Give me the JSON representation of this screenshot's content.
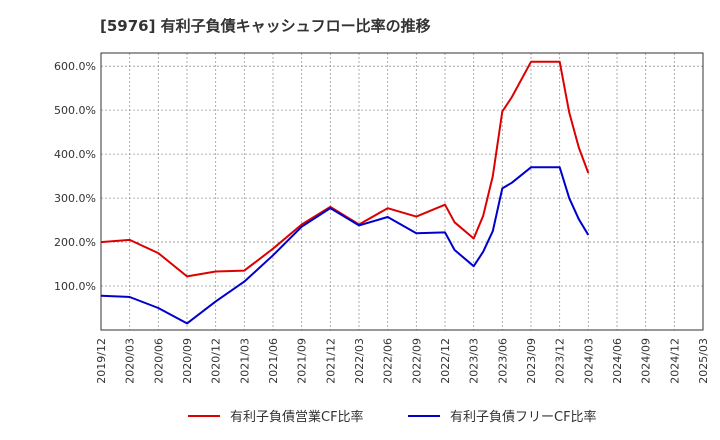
{
  "chart_data": {
    "type": "line",
    "title": "[5976]  有利子負債キャッシュフロー比率の推移",
    "xlabel": "",
    "ylabel": "",
    "x_ticks": [
      "2019/12",
      "2020/03",
      "2020/06",
      "2020/09",
      "2020/12",
      "2021/03",
      "2021/06",
      "2021/09",
      "2021/12",
      "2022/03",
      "2022/06",
      "2022/09",
      "2022/12",
      "2023/03",
      "2023/06",
      "2023/09",
      "2023/12",
      "2024/03",
      "2024/06",
      "2024/09",
      "2024/12",
      "2025/03"
    ],
    "y_ticks": [
      "100.0%",
      "200.0%",
      "300.0%",
      "400.0%",
      "500.0%",
      "600.0%"
    ],
    "ylim": [
      0,
      630
    ],
    "grid": true,
    "legend_position": "bottom",
    "series": [
      {
        "name": "有利子負債営業CF比率",
        "color": "#dd0000",
        "points": [
          {
            "x": "2019/12",
            "y": 200
          },
          {
            "x": "2020/03",
            "y": 205
          },
          {
            "x": "2020/06",
            "y": 175
          },
          {
            "x": "2020/09",
            "y": 122
          },
          {
            "x": "2020/12",
            "y": 133
          },
          {
            "x": "2021/03",
            "y": 135
          },
          {
            "x": "2021/06",
            "y": 185
          },
          {
            "x": "2021/09",
            "y": 240
          },
          {
            "x": "2021/12",
            "y": 280
          },
          {
            "x": "2022/03",
            "y": 240
          },
          {
            "x": "2022/06",
            "y": 277
          },
          {
            "x": "2022/09",
            "y": 258
          },
          {
            "x": "2022/12",
            "y": 285
          },
          {
            "x": "2023/01",
            "y": 245
          },
          {
            "x": "2023/03",
            "y": 208
          },
          {
            "x": "2023/04",
            "y": 260
          },
          {
            "x": "2023/05",
            "y": 350
          },
          {
            "x": "2023/06",
            "y": 497
          },
          {
            "x": "2023/07",
            "y": 530
          },
          {
            "x": "2023/09",
            "y": 610
          },
          {
            "x": "2023/12",
            "y": 610
          },
          {
            "x": "2024/01",
            "y": 495
          },
          {
            "x": "2024/02",
            "y": 415
          },
          {
            "x": "2024/03",
            "y": 357
          }
        ]
      },
      {
        "name": "有利子負債フリーCF比率",
        "color": "#0000cc",
        "points": [
          {
            "x": "2019/12",
            "y": 78
          },
          {
            "x": "2020/03",
            "y": 75
          },
          {
            "x": "2020/06",
            "y": 50
          },
          {
            "x": "2020/09",
            "y": 15
          },
          {
            "x": "2020/12",
            "y": 65
          },
          {
            "x": "2021/03",
            "y": 110
          },
          {
            "x": "2021/06",
            "y": 170
          },
          {
            "x": "2021/09",
            "y": 235
          },
          {
            "x": "2021/12",
            "y": 277
          },
          {
            "x": "2022/03",
            "y": 238
          },
          {
            "x": "2022/06",
            "y": 257
          },
          {
            "x": "2022/09",
            "y": 220
          },
          {
            "x": "2022/12",
            "y": 222
          },
          {
            "x": "2023/01",
            "y": 182
          },
          {
            "x": "2023/03",
            "y": 145
          },
          {
            "x": "2023/04",
            "y": 178
          },
          {
            "x": "2023/05",
            "y": 225
          },
          {
            "x": "2023/06",
            "y": 322
          },
          {
            "x": "2023/07",
            "y": 335
          },
          {
            "x": "2023/09",
            "y": 370
          },
          {
            "x": "2023/12",
            "y": 370
          },
          {
            "x": "2024/01",
            "y": 300
          },
          {
            "x": "2024/02",
            "y": 252
          },
          {
            "x": "2024/03",
            "y": 216
          }
        ]
      }
    ]
  }
}
